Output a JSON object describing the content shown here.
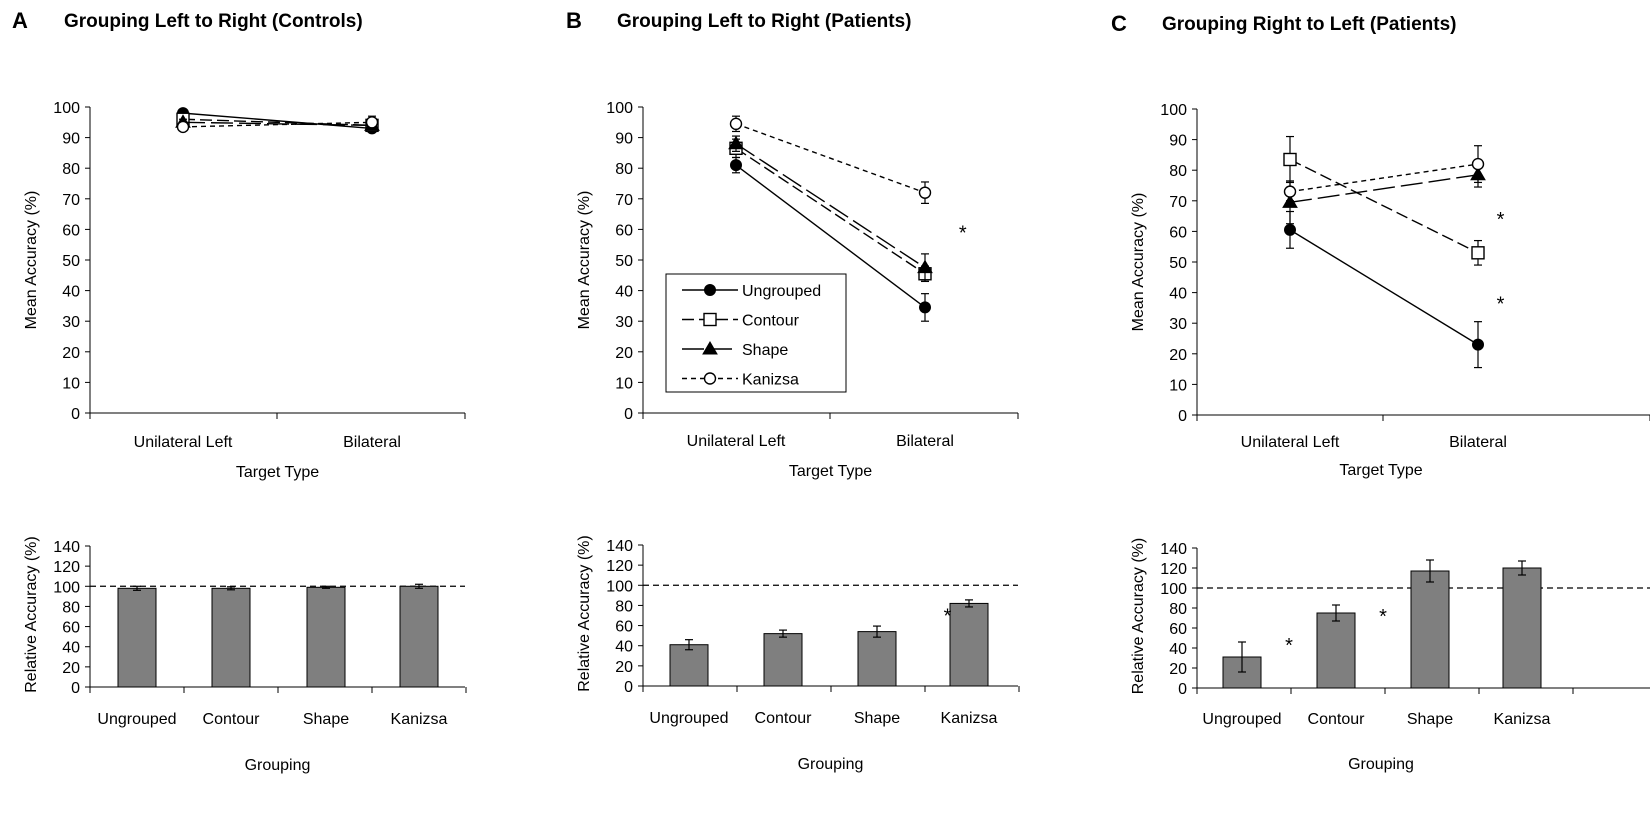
{
  "chart_data": [
    {
      "panel": "A",
      "title": "Grouping Left to Right (Controls)",
      "top": {
        "type": "line",
        "categories": [
          "Unilateral Left",
          "Bilateral"
        ],
        "xlabel": "Target Type",
        "ylabel": "Mean Accuracy (%)",
        "ylim": [
          0,
          100
        ],
        "yticks": [
          0,
          10,
          20,
          30,
          40,
          50,
          60,
          70,
          80,
          90,
          100
        ],
        "legend": false,
        "series": [
          {
            "name": "Ungrouped",
            "values": [
              98,
              93
            ],
            "err": [
              1,
              1
            ]
          },
          {
            "name": "Contour",
            "values": [
              96,
              94
            ],
            "err": [
              2,
              2
            ]
          },
          {
            "name": "Shape",
            "values": [
              95,
              94
            ],
            "err": [
              1,
              1
            ]
          },
          {
            "name": "Kanizsa",
            "values": [
              93.5,
              95
            ],
            "err": [
              1,
              2
            ]
          }
        ],
        "stars": []
      },
      "bottom": {
        "type": "bar",
        "categories": [
          "Ungrouped",
          "Contour",
          "Shape",
          "Kanizsa"
        ],
        "values": [
          98,
          98,
          99,
          100
        ],
        "err": [
          2,
          1.5,
          1,
          2
        ],
        "xlabel": "Grouping",
        "ylabel": "Relative Accuracy (%)",
        "ylim": [
          0,
          140
        ],
        "yticks": [
          0,
          20,
          40,
          60,
          80,
          100,
          120,
          140
        ],
        "reference_line": 100,
        "stars": []
      }
    },
    {
      "panel": "B",
      "title": "Grouping Left to Right (Patients)",
      "top": {
        "type": "line",
        "categories": [
          "Unilateral Left",
          "Bilateral"
        ],
        "xlabel": "Target Type",
        "ylabel": "Mean Accuracy (%)",
        "ylim": [
          0,
          100
        ],
        "yticks": [
          0,
          10,
          20,
          30,
          40,
          50,
          60,
          70,
          80,
          90,
          100
        ],
        "legend": true,
        "legend_placement": "lower-left",
        "series": [
          {
            "name": "Ungrouped",
            "values": [
              81,
              34.5
            ],
            "err": [
              2.5,
              4.5
            ]
          },
          {
            "name": "Contour",
            "values": [
              86.5,
              45.5
            ],
            "err": [
              3,
              2.5
            ]
          },
          {
            "name": "Shape",
            "values": [
              88,
              47.5
            ],
            "err": [
              2.5,
              4.5
            ]
          },
          {
            "name": "Kanizsa",
            "values": [
              94.5,
              72
            ],
            "err": [
              2.5,
              3.5
            ]
          }
        ],
        "stars": [
          {
            "label": "*",
            "x": 1.2,
            "y": 60
          }
        ]
      },
      "bottom": {
        "type": "bar",
        "categories": [
          "Ungrouped",
          "Contour",
          "Shape",
          "Kanizsa"
        ],
        "values": [
          41,
          52,
          54,
          82
        ],
        "err": [
          5,
          3.5,
          5.5,
          3.5
        ],
        "xlabel": "Grouping",
        "ylabel": "Relative Accuracy (%)",
        "ylim": [
          0,
          140
        ],
        "yticks": [
          0,
          20,
          40,
          60,
          80,
          100,
          120,
          140
        ],
        "reference_line": 100,
        "stars": [
          {
            "label": "*",
            "x": 2.75,
            "y": 73
          }
        ]
      }
    },
    {
      "panel": "C",
      "title": "Grouping Right to Left (Patients)",
      "top": {
        "type": "line",
        "categories": [
          "Unilateral Left",
          "Bilateral"
        ],
        "xlabel": "Target Type",
        "ylabel": "Mean Accuracy (%)",
        "ylim": [
          0,
          100
        ],
        "yticks": [
          0,
          10,
          20,
          30,
          40,
          50,
          60,
          70,
          80,
          90,
          100
        ],
        "legend": false,
        "series": [
          {
            "name": "Ungrouped",
            "values": [
              60.5,
              23
            ],
            "err": [
              6,
              7.5
            ]
          },
          {
            "name": "Contour",
            "values": [
              83.5,
              53
            ],
            "err": [
              7.5,
              4
            ]
          },
          {
            "name": "Shape",
            "values": [
              69.5,
              78.5
            ],
            "err": [
              7,
              4
            ]
          },
          {
            "name": "Kanizsa",
            "values": [
              73,
              82
            ],
            "err": [
              3,
              6
            ]
          }
        ],
        "stars": [
          {
            "label": "*",
            "x": 1.12,
            "y": 65
          },
          {
            "label": "*",
            "x": 1.12,
            "y": 37.5
          }
        ]
      },
      "bottom": {
        "type": "bar",
        "categories": [
          "Ungrouped",
          "Contour",
          "Shape",
          "Kanizsa"
        ],
        "values": [
          31,
          75,
          117,
          120
        ],
        "err": [
          15,
          8,
          11,
          7
        ],
        "xlabel": "Grouping",
        "ylabel": "Relative Accuracy (%)",
        "ylim": [
          0,
          140
        ],
        "yticks": [
          0,
          20,
          40,
          60,
          80,
          100,
          120,
          140
        ],
        "reference_line": 100,
        "stars": [
          {
            "label": "*",
            "x": 0.5,
            "y": 46
          },
          {
            "label": "*",
            "x": 1.5,
            "y": 75
          }
        ]
      }
    }
  ]
}
